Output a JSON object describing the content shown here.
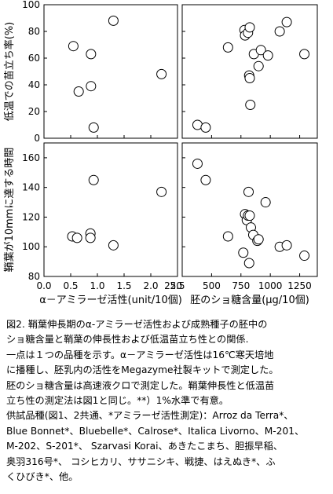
{
  "chart_data": [
    {
      "type": "scatter",
      "panel": "top-left",
      "ylabel": "低温での苗立ち率(%)",
      "xlim": [
        0,
        2.5
      ],
      "ylim": [
        0,
        100
      ],
      "x_ticks": [],
      "y_ticks": [
        "0",
        "20",
        "40",
        "60",
        "80",
        "100"
      ],
      "points": [
        {
          "x": 0.55,
          "y": 69
        },
        {
          "x": 0.65,
          "y": 35
        },
        {
          "x": 0.88,
          "y": 63
        },
        {
          "x": 0.88,
          "y": 39
        },
        {
          "x": 0.93,
          "y": 8
        },
        {
          "x": 1.3,
          "y": 88
        },
        {
          "x": 2.2,
          "y": 48
        }
      ]
    },
    {
      "type": "scatter",
      "panel": "top-right",
      "xlim": [
        250,
        1400
      ],
      "ylim": [
        0,
        100
      ],
      "x_ticks": [],
      "y_ticks": [],
      "points": [
        {
          "x": 380,
          "y": 10
        },
        {
          "x": 450,
          "y": 8
        },
        {
          "x": 640,
          "y": 68
        },
        {
          "x": 780,
          "y": 81
        },
        {
          "x": 785,
          "y": 77
        },
        {
          "x": 810,
          "y": 79
        },
        {
          "x": 825,
          "y": 83
        },
        {
          "x": 820,
          "y": 47
        },
        {
          "x": 825,
          "y": 45
        },
        {
          "x": 830,
          "y": 25
        },
        {
          "x": 860,
          "y": 63
        },
        {
          "x": 900,
          "y": 54
        },
        {
          "x": 920,
          "y": 66
        },
        {
          "x": 980,
          "y": 62
        },
        {
          "x": 1080,
          "y": 80
        },
        {
          "x": 1140,
          "y": 87
        },
        {
          "x": 1290,
          "y": 63
        }
      ]
    },
    {
      "type": "scatter",
      "panel": "bottom-left",
      "ylabel": "鞘葉が10mmに達する時間",
      "xlabel": "α－アミラーゼ活性(unit/10個)",
      "xlim": [
        0,
        2.5
      ],
      "ylim": [
        80,
        170
      ],
      "x_ticks": [
        "0.0",
        "0.5",
        "1.0",
        "1.5",
        "2.0",
        "2.5"
      ],
      "y_ticks": [
        "80",
        "100",
        "120",
        "140",
        "160"
      ],
      "points": [
        {
          "x": 0.53,
          "y": 107
        },
        {
          "x": 0.62,
          "y": 106
        },
        {
          "x": 0.87,
          "y": 109
        },
        {
          "x": 0.87,
          "y": 106
        },
        {
          "x": 0.93,
          "y": 145
        },
        {
          "x": 1.3,
          "y": 101
        },
        {
          "x": 2.2,
          "y": 137
        }
      ]
    },
    {
      "type": "scatter",
      "panel": "bottom-right",
      "xlabel": "胚のショ糖含量(μg/10個)",
      "xlim": [
        250,
        1400
      ],
      "ylim": [
        80,
        170
      ],
      "x_ticks": [
        "250",
        "500",
        "750",
        "1000",
        "1250"
      ],
      "y_ticks": [],
      "points": [
        {
          "x": 380,
          "y": 156
        },
        {
          "x": 450,
          "y": 145
        },
        {
          "x": 640,
          "y": 107
        },
        {
          "x": 770,
          "y": 96
        },
        {
          "x": 785,
          "y": 122
        },
        {
          "x": 800,
          "y": 118
        },
        {
          "x": 810,
          "y": 121
        },
        {
          "x": 815,
          "y": 137
        },
        {
          "x": 825,
          "y": 121
        },
        {
          "x": 820,
          "y": 89
        },
        {
          "x": 835,
          "y": 113
        },
        {
          "x": 855,
          "y": 108
        },
        {
          "x": 890,
          "y": 104
        },
        {
          "x": 900,
          "y": 105
        },
        {
          "x": 960,
          "y": 130
        },
        {
          "x": 1080,
          "y": 100
        },
        {
          "x": 1140,
          "y": 101
        },
        {
          "x": 1290,
          "y": 94
        }
      ]
    }
  ],
  "caption": {
    "lines": [
      "図2. 鞘葉伸長期のα-アミラーゼ活性および成熟種子の胚中の",
      "ショ糖含量と鞘葉の伸長性および低温苗立ち性との関係.",
      "一点は１つの品種を示す。α－アミラーゼ活性は16℃寒天培地",
      "に播種し、胚乳内の活性をMegazyme社製キットで測定した。",
      "胚のショ糖含量は高速液クロで測定した。鞘葉伸長性と低温苗",
      "立ち性の測定法は図1と同じ。**）1%水準で有意。",
      "供試品種(図1、2共通、*アミラーゼ活性測定)：Arroz da Terra*、",
      "Blue Bonnet*、Bluebelle*、Calrose*、Italica Livorno、M-201、",
      "M-202、S-201*、 Szarvasi Korai、あきたこまち、胆振早稲、",
      "奥羽316号*、 コシヒカリ、ササニシキ、戦捷、はえぬき*、ふ",
      "くひびき*、他。"
    ]
  }
}
